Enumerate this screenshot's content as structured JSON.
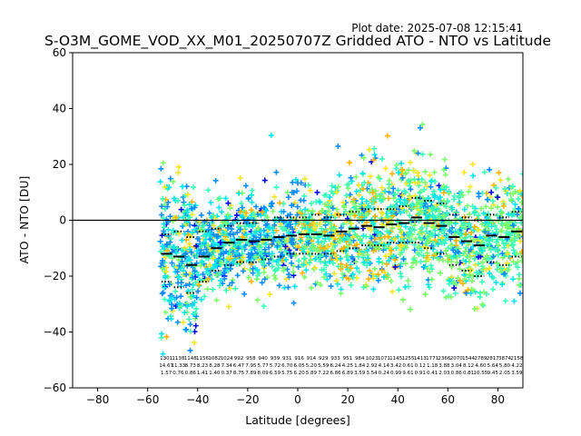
{
  "chart_data": {
    "type": "scatter",
    "title": "S-O3M_GOME_VOD_XX_M01_20250707Z Gridded ATO - NTO vs Latitude",
    "plot_date": "Plot date: 2025-07-08 12:15:41",
    "xlabel": "Latitude [degrees]",
    "ylabel": "ATO - NTO [DU]",
    "xlim": [
      -90,
      90
    ],
    "ylim": [
      -60,
      60
    ],
    "xticks": [
      -80,
      -60,
      -40,
      -20,
      0,
      20,
      40,
      60,
      80
    ],
    "yticks": [
      -60,
      -40,
      -20,
      0,
      20,
      40,
      60
    ],
    "grid": false,
    "zero_line": 0,
    "marker": "+",
    "colors": {
      "dark_blue": "#0000ee",
      "blue": "#0a8cff",
      "cyan": "#00e5ee",
      "aqua": "#3dffb8",
      "green": "#7dff6b",
      "yellow": "#f5e62a",
      "orange": "#ffb300",
      "axis": "#000000",
      "median_marker": "#000000"
    },
    "medians": {
      "lat": [
        -52.5,
        -47.5,
        -42.5,
        -37.5,
        -32.5,
        -27.5,
        -22.5,
        -17.5,
        -12.5,
        -7.5,
        -2.5,
        2.5,
        7.5,
        12.5,
        17.5,
        22.5,
        27.5,
        32.5,
        37.5,
        42.5,
        47.5,
        52.5,
        57.5,
        62.5,
        67.5,
        72.5,
        77.5,
        82.5,
        87.5
      ],
      "value": [
        -12,
        -13,
        -16,
        -13,
        -10,
        -8,
        -7,
        -7.5,
        -7,
        -6,
        -5.5,
        -5,
        -5,
        -5.5,
        -4,
        -3,
        -2,
        -2.5,
        -1.5,
        -1,
        1,
        -1,
        -2,
        -6,
        -7.5,
        -9,
        -5.5,
        -6,
        -4
      ]
    },
    "quantile_upper": [
      -5,
      -4,
      -6,
      -4,
      -3,
      -2,
      -1,
      -1,
      0,
      1,
      1,
      1,
      2,
      1,
      2,
      3,
      4,
      4,
      4,
      5,
      8,
      7,
      6,
      2,
      1,
      0,
      2,
      1,
      3
    ],
    "quantile_lower": [
      -22,
      -24,
      -26,
      -22,
      -18,
      -16,
      -15,
      -15,
      -14,
      -13,
      -12,
      -12,
      -12,
      -12,
      -11,
      -10,
      -9,
      -9,
      -8,
      -8,
      -8,
      -10,
      -12,
      -16,
      -18,
      -20,
      -15,
      -16,
      -13
    ],
    "bin_annotations": [
      [
        "1301",
        "14.67",
        "1.57"
      ],
      [
        "1138",
        "11.33",
        "0.76"
      ],
      [
        "1148",
        "8.73",
        "0.86"
      ],
      [
        "1156",
        "8.23",
        "1.41"
      ],
      [
        "1082",
        "8.28",
        "1.40"
      ],
      [
        "1024",
        "7.34",
        "0.37"
      ],
      [
        "992",
        "6.47",
        "8.75"
      ],
      [
        "958",
        "7.95",
        "7.89"
      ],
      [
        "940",
        "5.77",
        "8.09"
      ],
      [
        "939",
        "5.72",
        "6.59"
      ],
      [
        "931",
        "6.70",
        "5.75"
      ],
      [
        "916",
        "6.05",
        "6.20"
      ],
      [
        "914",
        "5.20",
        "5.89"
      ],
      [
        "929",
        "5.59",
        "7.22"
      ],
      [
        "933",
        "6.24",
        "6.86"
      ],
      [
        "951",
        "4.25",
        "6.89"
      ],
      [
        "984",
        "1.84",
        "3.59"
      ],
      [
        "1023",
        "2.92",
        "3.54"
      ],
      [
        "1071",
        "4.14",
        "0.24"
      ],
      [
        "1145",
        "3.42",
        "0.99"
      ],
      [
        "1255",
        "0.61",
        "9.61"
      ],
      [
        "1413",
        "0.12",
        "0.91"
      ],
      [
        "1771",
        "1.18",
        "0.41"
      ],
      [
        "2366",
        "3.88",
        "2.03"
      ],
      [
        "2070",
        "3.04",
        "0.86"
      ],
      [
        "1544",
        "8.12",
        "0.81"
      ],
      [
        "2789",
        "4.60",
        "10.55"
      ],
      [
        "2817",
        "5.64",
        "9.45"
      ],
      [
        "3874",
        "5.80",
        "2.05"
      ],
      [
        "2158",
        "4.22",
        "3.59"
      ]
    ]
  }
}
